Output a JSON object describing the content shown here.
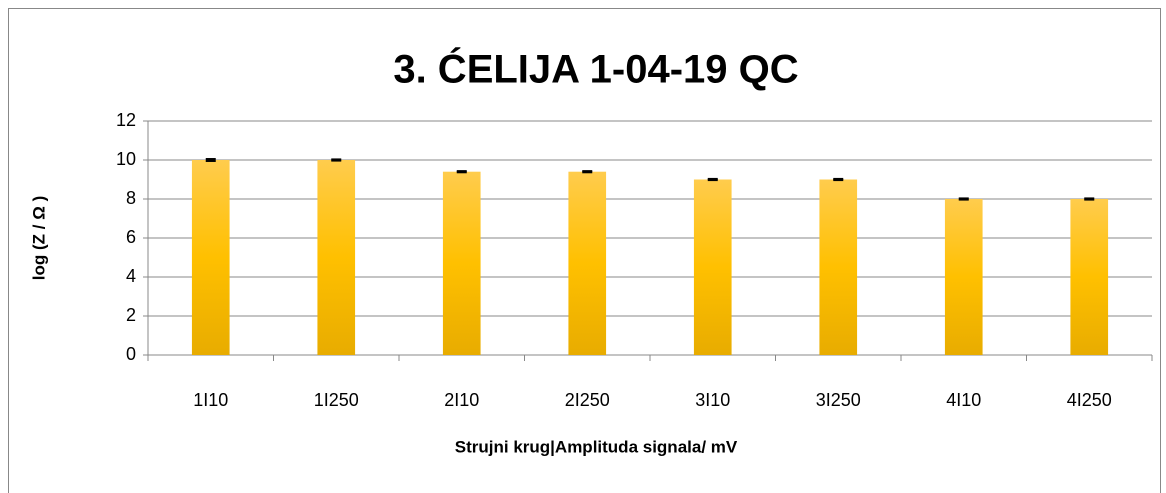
{
  "chart_data": {
    "type": "bar",
    "title": "3. ĆELIJA 1-04-19 QC",
    "x_label": "Strujni krug|Amplituda signala/  mV",
    "y_label": "log (Z / Ω )",
    "categories": [
      "1I10",
      "1I250",
      "2I10",
      "2I250",
      "3I10",
      "3I250",
      "4I10",
      "4I250"
    ],
    "values": [
      10.0,
      10.0,
      9.4,
      9.4,
      9.0,
      9.0,
      8.0,
      8.0
    ],
    "errors": [
      0.05,
      0.03,
      0.03,
      0.03,
      0.03,
      0.03,
      0.03,
      0.03
    ],
    "color": "#ffc000",
    "ylim": [
      0,
      12
    ],
    "yticks": [
      0,
      2,
      4,
      6,
      8,
      10,
      12
    ],
    "grid": true
  }
}
